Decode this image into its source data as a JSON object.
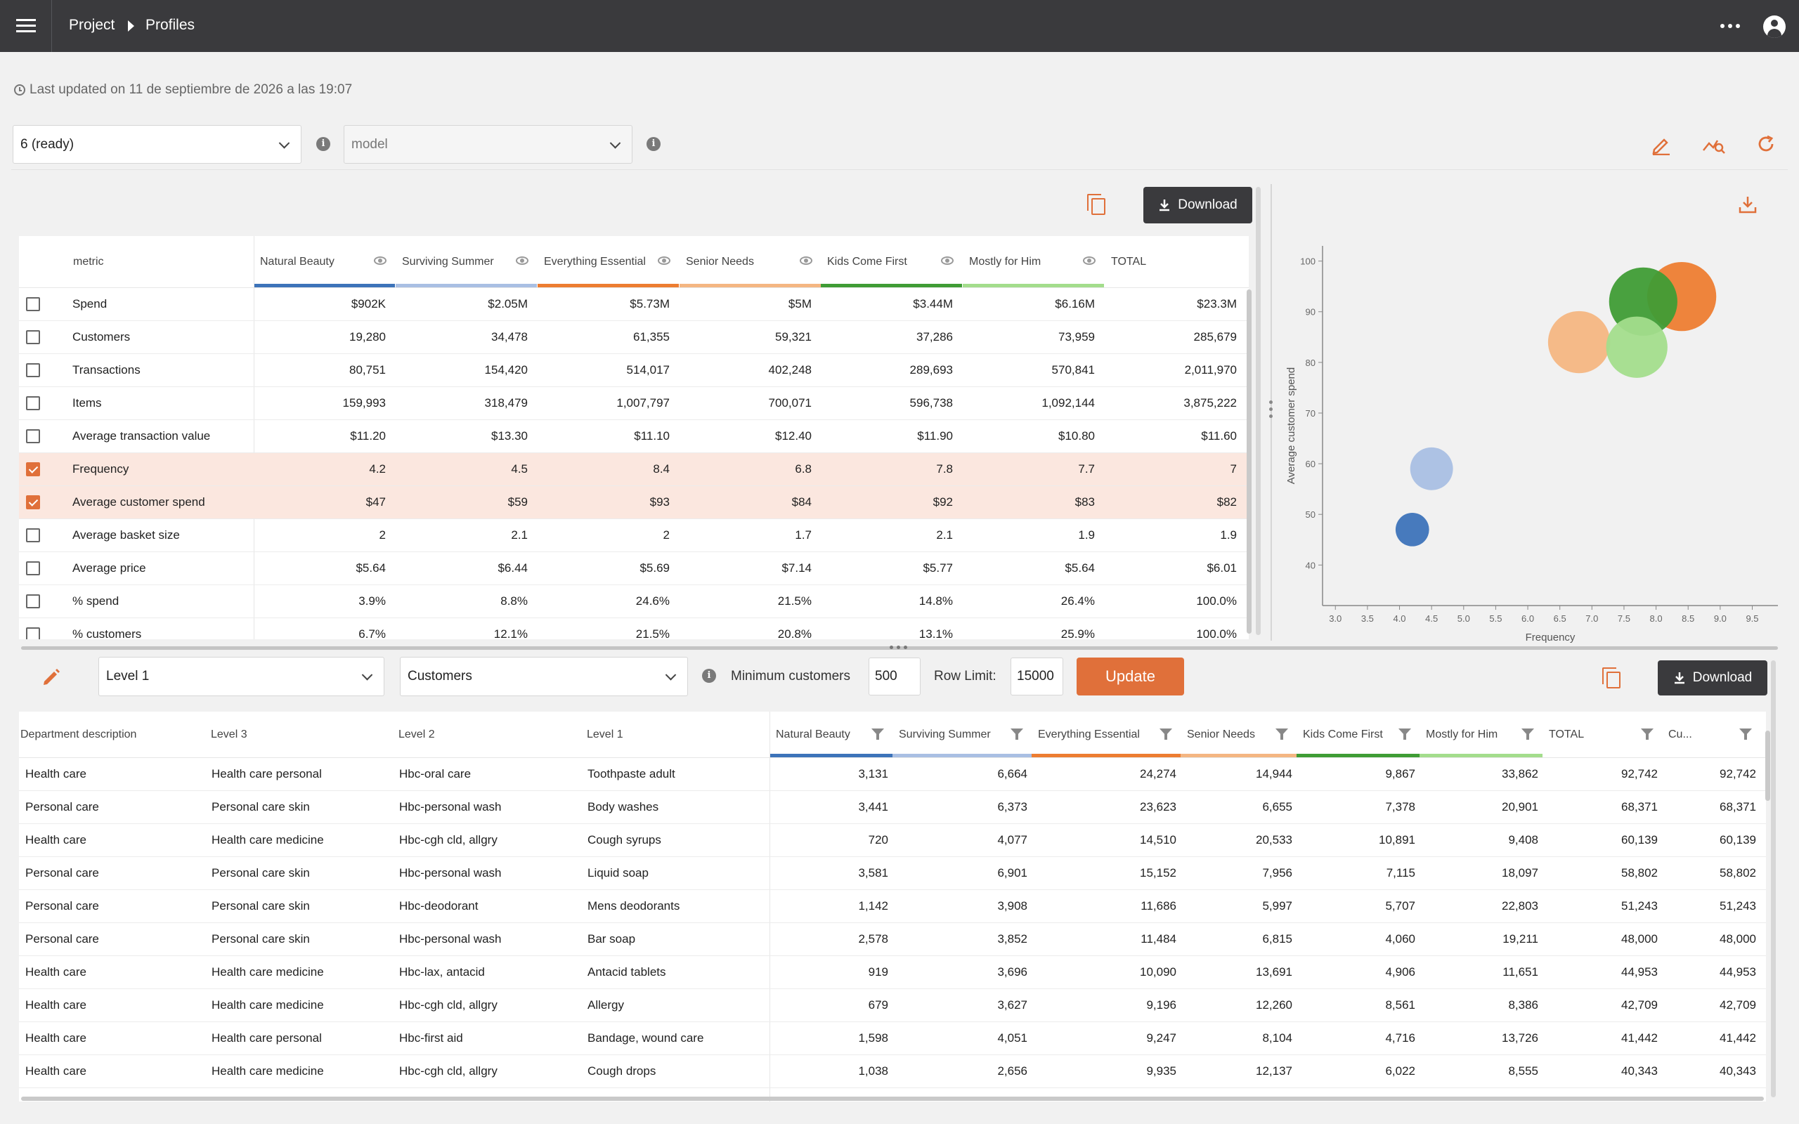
{
  "topbar": {
    "breadcrumb_project": "Project",
    "breadcrumb_current": "Profiles"
  },
  "updated_text": "Last updated on 11 de septiembre de 2026 a las 19:07",
  "selectors": {
    "run_value": "6 (ready)",
    "model_placeholder": "model"
  },
  "metrics": {
    "download_label": "Download",
    "header_first": "metric",
    "columns": [
      {
        "name": "Natural Beauty",
        "color": "#3d73b9"
      },
      {
        "name": "Surviving Summer",
        "color": "#a9bfe3"
      },
      {
        "name": "Everything Essential",
        "color": "#ed7d31"
      },
      {
        "name": "Senior Needs",
        "color": "#f4b682"
      },
      {
        "name": "Kids Come First",
        "color": "#3f9c35"
      },
      {
        "name": "Mostly for Him",
        "color": "#a3dd8c"
      },
      {
        "name": "TOTAL",
        "color": ""
      }
    ],
    "rows": [
      {
        "label": "Spend",
        "checked": false,
        "values": [
          "$902K",
          "$2.05M",
          "$5.73M",
          "$5M",
          "$3.44M",
          "$6.16M",
          "$23.3M"
        ]
      },
      {
        "label": "Customers",
        "checked": false,
        "values": [
          "19,280",
          "34,478",
          "61,355",
          "59,321",
          "37,286",
          "73,959",
          "285,679"
        ]
      },
      {
        "label": "Transactions",
        "checked": false,
        "values": [
          "80,751",
          "154,420",
          "514,017",
          "402,248",
          "289,693",
          "570,841",
          "2,011,970"
        ]
      },
      {
        "label": "Items",
        "checked": false,
        "values": [
          "159,993",
          "318,479",
          "1,007,797",
          "700,071",
          "596,738",
          "1,092,144",
          "3,875,222"
        ]
      },
      {
        "label": "Average transaction value",
        "checked": false,
        "values": [
          "$11.20",
          "$13.30",
          "$11.10",
          "$12.40",
          "$11.90",
          "$10.80",
          "$11.60"
        ]
      },
      {
        "label": "Frequency",
        "checked": true,
        "values": [
          "4.2",
          "4.5",
          "8.4",
          "6.8",
          "7.8",
          "7.7",
          "7"
        ]
      },
      {
        "label": "Average customer spend",
        "checked": true,
        "values": [
          "$47",
          "$59",
          "$93",
          "$84",
          "$92",
          "$83",
          "$82"
        ]
      },
      {
        "label": "Average basket size",
        "checked": false,
        "values": [
          "2",
          "2.1",
          "2",
          "1.7",
          "2.1",
          "1.9",
          "1.9"
        ]
      },
      {
        "label": "Average price",
        "checked": false,
        "values": [
          "$5.64",
          "$6.44",
          "$5.69",
          "$7.14",
          "$5.77",
          "$5.64",
          "$6.01"
        ]
      },
      {
        "label": "% spend",
        "checked": false,
        "values": [
          "3.9%",
          "8.8%",
          "24.6%",
          "21.5%",
          "14.8%",
          "26.4%",
          "100.0%"
        ]
      },
      {
        "label": "% customers",
        "checked": false,
        "values": [
          "6.7%",
          "12.1%",
          "21.5%",
          "20.8%",
          "13.1%",
          "25.9%",
          "100.0%"
        ]
      }
    ]
  },
  "chart_data": {
    "type": "scatter",
    "xlabel": "Frequency",
    "ylabel": "Average customer spend",
    "xlim": [
      2.8,
      9.9
    ],
    "ylim": [
      32,
      103
    ],
    "x_ticks": [
      "3.0",
      "3.5",
      "4.0",
      "4.5",
      "5.0",
      "5.5",
      "6.0",
      "6.5",
      "7.0",
      "7.5",
      "8.0",
      "8.5",
      "9.0",
      "9.5"
    ],
    "y_ticks": [
      "40",
      "50",
      "60",
      "70",
      "80",
      "90",
      "100"
    ],
    "series": [
      {
        "color": "#3d73b9",
        "x": 4.2,
        "y": 47
      },
      {
        "color": "#a9bfe3",
        "x": 4.5,
        "y": 59
      },
      {
        "color": "#ed7d31",
        "x": 8.4,
        "y": 93
      },
      {
        "color": "#f4b682",
        "x": 6.8,
        "y": 84
      },
      {
        "color": "#3f9c35",
        "x": 7.8,
        "y": 92
      },
      {
        "color": "#a3dd8c",
        "x": 7.7,
        "y": 83
      }
    ]
  },
  "controls": {
    "level_value": "Level 1",
    "measure_value": "Customers",
    "min_customers_label": "Minimum customers",
    "min_customers_value": "500",
    "row_limit_label": "Row Limit:",
    "row_limit_value": "15000",
    "update_label": "Update",
    "download_label": "Download"
  },
  "detail": {
    "headers": [
      "Department description",
      "Level 3",
      "Level 2",
      "Level 1",
      "Natural Beauty",
      "Surviving Summer",
      "Everything Essential",
      "Senior Needs",
      "Kids Come First",
      "Mostly for Him",
      "TOTAL",
      "Cu..."
    ],
    "rows": [
      [
        "Health care",
        "Health care personal",
        "Hbc-oral care",
        "Toothpaste adult",
        "3,131",
        "6,664",
        "24,274",
        "14,944",
        "9,867",
        "33,862",
        "92,742",
        "92,742"
      ],
      [
        "Personal care",
        "Personal care skin",
        "Hbc-personal wash",
        "Body washes",
        "3,441",
        "6,373",
        "23,623",
        "6,655",
        "7,378",
        "20,901",
        "68,371",
        "68,371"
      ],
      [
        "Health care",
        "Health care medicine",
        "Hbc-cgh cld, allgry",
        "Cough syrups",
        "720",
        "4,077",
        "14,510",
        "20,533",
        "10,891",
        "9,408",
        "60,139",
        "60,139"
      ],
      [
        "Personal care",
        "Personal care skin",
        "Hbc-personal wash",
        "Liquid soap",
        "3,581",
        "6,901",
        "15,152",
        "7,956",
        "7,115",
        "18,097",
        "58,802",
        "58,802"
      ],
      [
        "Personal care",
        "Personal care skin",
        "Hbc-deodorant",
        "Mens deodorants",
        "1,142",
        "3,908",
        "11,686",
        "5,997",
        "5,707",
        "22,803",
        "51,243",
        "51,243"
      ],
      [
        "Personal care",
        "Personal care skin",
        "Hbc-personal wash",
        "Bar soap",
        "2,578",
        "3,852",
        "11,484",
        "6,815",
        "4,060",
        "19,211",
        "48,000",
        "48,000"
      ],
      [
        "Health care",
        "Health care medicine",
        "Hbc-lax, antacid",
        "Antacid tablets",
        "919",
        "3,696",
        "10,090",
        "13,691",
        "4,906",
        "11,651",
        "44,953",
        "44,953"
      ],
      [
        "Health care",
        "Health care medicine",
        "Hbc-cgh cld, allgry",
        "Allergy",
        "679",
        "3,627",
        "9,196",
        "12,260",
        "8,561",
        "8,386",
        "42,709",
        "42,709"
      ],
      [
        "Health care",
        "Health care personal",
        "Hbc-first aid",
        "Bandage, wound care",
        "1,598",
        "4,051",
        "9,247",
        "8,104",
        "4,716",
        "13,726",
        "41,442",
        "41,442"
      ],
      [
        "Health care",
        "Health care medicine",
        "Hbc-cgh cld, allgry",
        "Cough drops",
        "1,038",
        "2,656",
        "9,935",
        "12,137",
        "6,022",
        "8,555",
        "40,343",
        "40,343"
      ]
    ]
  }
}
